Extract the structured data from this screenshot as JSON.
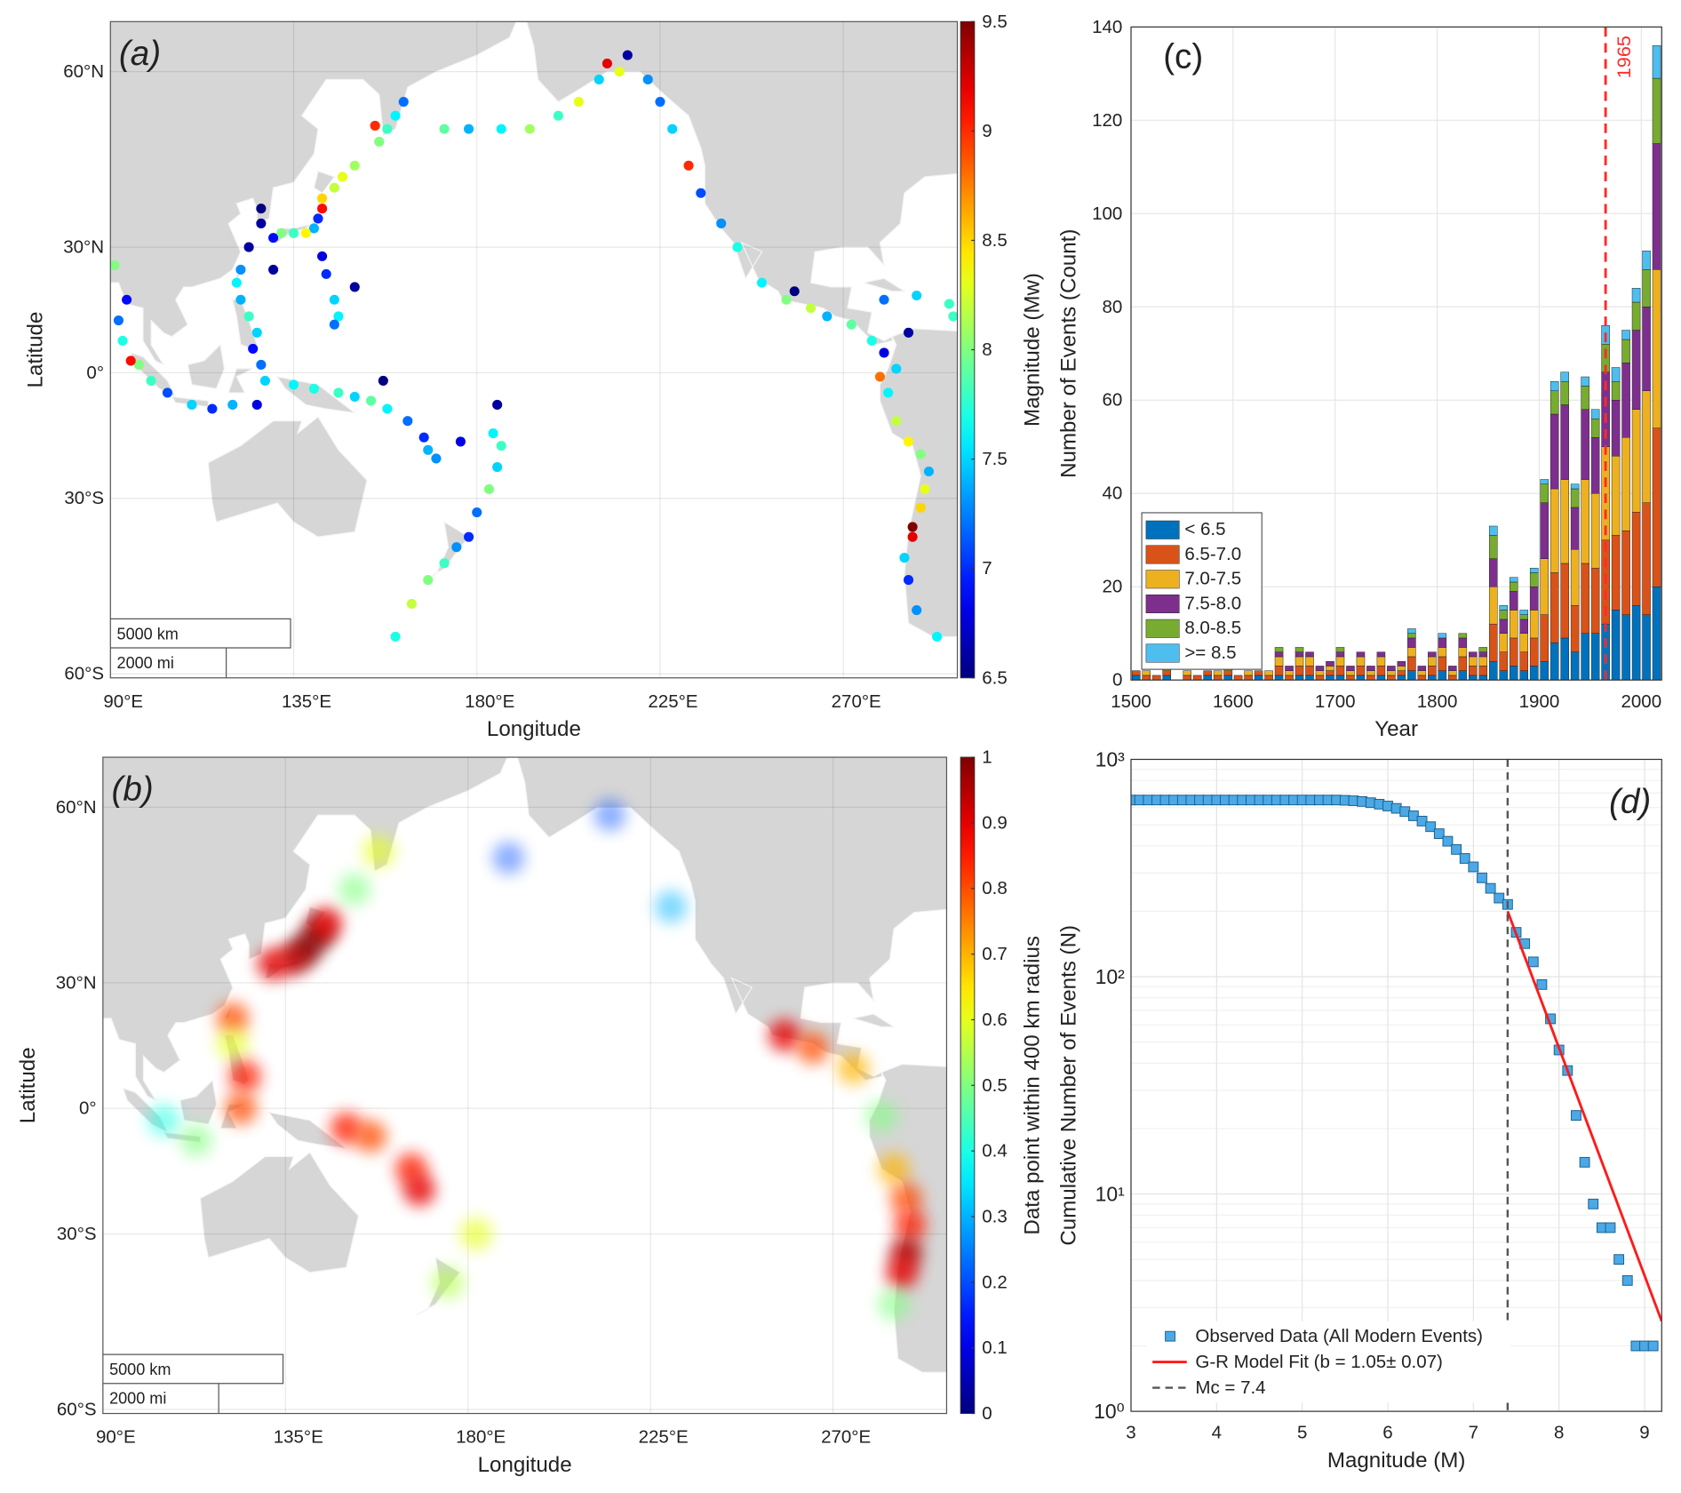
{
  "chart_data": [
    {
      "type": "mapscatter",
      "panel_label": "(a)",
      "x_label": "Longitude",
      "y_label": "Latitude",
      "xlim": [
        90,
        298
      ],
      "ylim": [
        -60.5,
        65.7
      ],
      "xticks": [
        {
          "value": 90,
          "label": "90°E"
        },
        {
          "value": 135,
          "label": "135°E"
        },
        {
          "value": 180,
          "label": "180°E"
        },
        {
          "value": 225,
          "label": "225°E"
        },
        {
          "value": 270,
          "label": "270°E"
        }
      ],
      "yticks": [
        {
          "value": -60,
          "label": "60°S"
        },
        {
          "value": -30,
          "label": "30°S"
        },
        {
          "value": 0,
          "label": "0°"
        },
        {
          "value": 30,
          "label": "30°N"
        },
        {
          "value": 60,
          "label": "60°N"
        }
      ],
      "scale_bars": [
        "5000 km",
        "2000 mi"
      ],
      "colormap": "jet",
      "clim": [
        6.5,
        9.5
      ],
      "colorbar_label": "Magnitude (Mw)",
      "cticks": [
        6.5,
        7,
        7.5,
        8,
        8.5,
        9,
        9.5
      ],
      "grid": true,
      "x": [
        158,
        160,
        162,
        156,
        155,
        150,
        147,
        145,
        142,
        142,
        141,
        140,
        138,
        135,
        132,
        130,
        127,
        124,
        122,
        121,
        122,
        124,
        126,
        125,
        127,
        128,
        126,
        120,
        115,
        110,
        104,
        100,
        97,
        95,
        93,
        92,
        94,
        91,
        142,
        143,
        145,
        146,
        145,
        135,
        140,
        146,
        150,
        154,
        158,
        163,
        167,
        168,
        170,
        176,
        184,
        186,
        185,
        183,
        180,
        178,
        175,
        172,
        168,
        164,
        160,
        172,
        178,
        186,
        193,
        200,
        205,
        210,
        212,
        215,
        222,
        225,
        228,
        232,
        235,
        240,
        244,
        250,
        256,
        262,
        266,
        272,
        277,
        280,
        283,
        279,
        281,
        283,
        286,
        289,
        291,
        290,
        289,
        287,
        287,
        285,
        286,
        288,
        293,
        280,
        288,
        296,
        297,
        127,
        130,
        150,
        157,
        185,
        217,
        258,
        286
      ],
      "y": [
        52,
        54,
        56,
        50,
        52.5,
        46,
        44,
        42,
        40,
        38,
        36,
        34,
        33,
        33,
        33,
        32,
        35,
        30,
        25,
        22,
        18,
        14,
        10,
        6,
        2,
        -2,
        -8,
        -8,
        -9,
        -8,
        -5,
        -2,
        2,
        3,
        8,
        13,
        18,
        26,
        28,
        24,
        18,
        14,
        12,
        -3,
        -4,
        -5,
        -6,
        -7,
        -9,
        -12,
        -16,
        -19,
        -21,
        -17,
        -15,
        -18,
        -23,
        -28,
        -33,
        -38,
        -40,
        -43,
        -46,
        -50,
        -55,
        52,
        52,
        52,
        52,
        54,
        56,
        59,
        61,
        60,
        59,
        56,
        52,
        46,
        41,
        35,
        30,
        22,
        18,
        16,
        14,
        12,
        8,
        5,
        1,
        -1,
        -5,
        -12,
        -17,
        -20,
        -24,
        -28,
        -32,
        -36,
        -38,
        -42,
        -46,
        -51,
        -55,
        18,
        19,
        17,
        14,
        38,
        25,
        21,
        -2,
        -8,
        62,
        20,
        10
      ],
      "values": [
        7.8,
        7.6,
        7.2,
        8.0,
        9.0,
        8.1,
        8.3,
        8.2,
        8.5,
        9.1,
        7.0,
        7.4,
        8.4,
        7.8,
        8.0,
        6.9,
        6.6,
        6.6,
        7.3,
        7.6,
        7.4,
        7.8,
        7.5,
        6.9,
        7.2,
        7.5,
        6.8,
        7.4,
        7.0,
        7.5,
        7.1,
        7.8,
        8.0,
        9.1,
        7.7,
        7.2,
        6.9,
        8.0,
        6.8,
        7.0,
        7.5,
        7.6,
        7.2,
        7.6,
        7.7,
        7.8,
        7.5,
        7.9,
        7.6,
        7.2,
        7.0,
        7.4,
        7.3,
        6.8,
        7.6,
        7.8,
        7.5,
        8.0,
        7.2,
        7.0,
        7.3,
        7.8,
        8.0,
        8.2,
        7.7,
        7.9,
        7.4,
        7.6,
        8.1,
        7.8,
        8.3,
        7.5,
        9.2,
        8.3,
        7.3,
        7.2,
        7.5,
        9.0,
        7.1,
        7.3,
        7.7,
        7.6,
        8.0,
        8.2,
        7.4,
        7.9,
        7.7,
        6.8,
        7.5,
        8.8,
        7.6,
        8.2,
        8.4,
        8.0,
        7.4,
        8.3,
        8.5,
        9.5,
        9.2,
        7.5,
        7.0,
        7.3,
        7.6,
        7.2,
        7.5,
        7.8,
        7.8,
        6.5,
        6.6,
        6.6,
        6.5,
        6.6,
        6.6,
        6.5,
        6.6
      ]
    },
    {
      "type": "mapdensity",
      "panel_label": "(b)",
      "x_label": "Longitude",
      "y_label": "Latitude",
      "xlim": [
        90,
        298
      ],
      "ylim": [
        -60.5,
        65.7
      ],
      "xticks": [
        {
          "value": 90,
          "label": "90°E"
        },
        {
          "value": 135,
          "label": "135°E"
        },
        {
          "value": 180,
          "label": "180°E"
        },
        {
          "value": 225,
          "label": "225°E"
        },
        {
          "value": 270,
          "label": "270°E"
        }
      ],
      "yticks": [
        {
          "value": -60,
          "label": "60°S"
        },
        {
          "value": -30,
          "label": "30°S"
        },
        {
          "value": 0,
          "label": "0°"
        },
        {
          "value": 30,
          "label": "30°N"
        },
        {
          "value": 60,
          "label": "60°N"
        }
      ],
      "scale_bars": [
        "5000 km",
        "2000 mi"
      ],
      "colormap": "jet",
      "clim": [
        0,
        1
      ],
      "colorbar_label": "Data point within 400 km radius",
      "cticks": [
        0,
        0.1,
        0.2,
        0.3,
        0.4,
        0.5,
        0.6,
        0.7,
        0.8,
        0.9,
        1
      ],
      "grid": true,
      "x": [
        140,
        143,
        145,
        137,
        132,
        152,
        158,
        122,
        122,
        125,
        124,
        105,
        113,
        150,
        156,
        166,
        168,
        182,
        175,
        190,
        215,
        230,
        258,
        265,
        275,
        282,
        285,
        288,
        289,
        288,
        287,
        285
      ],
      "y": [
        37,
        40,
        42,
        35,
        34,
        48,
        54,
        22,
        16,
        8,
        0,
        -3,
        -8,
        -5,
        -7,
        -15,
        -20,
        -30,
        -40,
        53,
        59,
        45,
        18,
        15,
        10,
        -2,
        -15,
        -22,
        -28,
        -34,
        -38,
        -44
      ],
      "values": [
        1,
        1,
        0.9,
        0.95,
        0.9,
        0.5,
        0.6,
        0.8,
        0.6,
        0.85,
        0.8,
        0.4,
        0.5,
        0.85,
        0.8,
        0.85,
        0.9,
        0.6,
        0.55,
        0.2,
        0.2,
        0.3,
        0.9,
        0.8,
        0.7,
        0.5,
        0.7,
        0.8,
        0.85,
        0.95,
        0.9,
        0.5
      ]
    },
    {
      "type": "histogram",
      "panel_label": "(c)",
      "x_label": "Year",
      "y_label": "Number of Events (Count)",
      "xlim": [
        1500,
        2020
      ],
      "xticks": [
        1500,
        1600,
        1700,
        1800,
        1900,
        2000
      ],
      "ylim": [
        0,
        140
      ],
      "yticks": [
        0,
        20,
        40,
        60,
        80,
        100,
        120,
        140
      ],
      "grid": true,
      "legend": "lower left",
      "vline": {
        "x": 1965,
        "color": "#ff2a2a"
      },
      "bins": [
        1500,
        1510,
        1520,
        1530,
        1540,
        1550,
        1560,
        1570,
        1580,
        1590,
        1600,
        1610,
        1620,
        1630,
        1640,
        1650,
        1660,
        1670,
        1680,
        1690,
        1700,
        1710,
        1720,
        1730,
        1740,
        1750,
        1760,
        1770,
        1780,
        1790,
        1800,
        1810,
        1820,
        1830,
        1840,
        1850,
        1860,
        1870,
        1880,
        1890,
        1900,
        1910,
        1920,
        1930,
        1940,
        1950,
        1960,
        1970,
        1980,
        1990,
        2000,
        2010,
        2020
      ],
      "series": [
        {
          "name": "< 6.5",
          "color": "#0072bd",
          "values": [
            1,
            0,
            0,
            1,
            0,
            0,
            0,
            1,
            0,
            1,
            0,
            0,
            1,
            0,
            1,
            0,
            1,
            1,
            0,
            1,
            1,
            0,
            1,
            0,
            1,
            0,
            1,
            2,
            0,
            1,
            2,
            0,
            2,
            1,
            1,
            4,
            2,
            3,
            2,
            3,
            4,
            8,
            9,
            6,
            10,
            10,
            12,
            15,
            14,
            16,
            14,
            20
          ]
        },
        {
          "name": "6.5-7.0",
          "color": "#d95319",
          "values": [
            1,
            1,
            1,
            1,
            0,
            1,
            1,
            1,
            1,
            1,
            1,
            1,
            1,
            1,
            2,
            1,
            2,
            2,
            1,
            1,
            2,
            1,
            2,
            1,
            2,
            1,
            1,
            3,
            1,
            2,
            3,
            1,
            3,
            2,
            2,
            8,
            4,
            6,
            4,
            6,
            10,
            15,
            16,
            10,
            15,
            14,
            18,
            16,
            18,
            20,
            24,
            34
          ]
        },
        {
          "name": "7.0-7.5",
          "color": "#edb120",
          "values": [
            0,
            1,
            0,
            1,
            0,
            1,
            0,
            0,
            1,
            1,
            0,
            1,
            0,
            1,
            2,
            1,
            2,
            2,
            1,
            1,
            2,
            1,
            2,
            1,
            2,
            1,
            1,
            2,
            1,
            2,
            2,
            1,
            2,
            2,
            2,
            8,
            4,
            6,
            4,
            6,
            12,
            18,
            18,
            12,
            18,
            16,
            20,
            17,
            20,
            22,
            24,
            34
          ]
        },
        {
          "name": "7.5-8.0",
          "color": "#7e2f8e",
          "values": [
            0,
            0,
            0,
            0,
            0,
            0,
            0,
            0,
            0,
            0,
            0,
            0,
            0,
            0,
            1,
            1,
            1,
            1,
            1,
            1,
            1,
            1,
            1,
            1,
            1,
            1,
            1,
            2,
            1,
            1,
            2,
            1,
            2,
            1,
            1,
            6,
            3,
            4,
            3,
            5,
            12,
            16,
            16,
            9,
            15,
            12,
            16,
            12,
            16,
            17,
            18,
            27
          ]
        },
        {
          "name": "8.0-8.5",
          "color": "#77ac30",
          "values": [
            0,
            0,
            0,
            0,
            0,
            0,
            0,
            0,
            0,
            0,
            0,
            0,
            0,
            0,
            1,
            0,
            1,
            0,
            0,
            0,
            1,
            0,
            0,
            0,
            0,
            0,
            0,
            1,
            0,
            0,
            0,
            0,
            1,
            0,
            1,
            5,
            2,
            2,
            1,
            3,
            4,
            5,
            5,
            4,
            5,
            4,
            6,
            4,
            5,
            6,
            8,
            14
          ]
        },
        {
          "name": ">= 8.5",
          "color": "#4dbeee",
          "values": [
            0,
            0,
            0,
            0,
            0,
            0,
            0,
            0,
            0,
            0,
            0,
            0,
            0,
            0,
            0,
            0,
            0,
            0,
            0,
            0,
            0,
            0,
            0,
            0,
            0,
            0,
            0,
            1,
            0,
            0,
            1,
            0,
            0,
            0,
            0,
            2,
            1,
            1,
            1,
            1,
            1,
            2,
            2,
            1,
            2,
            2,
            4,
            3,
            2,
            3,
            4,
            7
          ]
        }
      ]
    },
    {
      "type": "scatter",
      "panel_label": "(d)",
      "x_label": "Magnitude (M)",
      "y_label": "Cumulative Number of Events (N)",
      "xlim": [
        3,
        9.2
      ],
      "xticks": [
        3,
        4,
        5,
        6,
        7,
        8,
        9
      ],
      "ylim": [
        1,
        1000
      ],
      "log_y": true,
      "yticks": [
        {
          "value": 1,
          "label": "10⁰"
        },
        {
          "value": 10,
          "label": "10¹"
        },
        {
          "value": 100,
          "label": "10²"
        },
        {
          "value": 1000,
          "label": "10³"
        }
      ],
      "grid": true,
      "legend": "lower left",
      "series": [
        {
          "name": "Observed Data (All Modern Events)",
          "color": "#4aa9e6",
          "marker": "square",
          "x": [
            3,
            3.1,
            3.2,
            3.3,
            3.4,
            3.5,
            3.6,
            3.7,
            3.8,
            3.9,
            4,
            4.1,
            4.2,
            4.3,
            4.4,
            4.5,
            4.6,
            4.7,
            4.8,
            4.9,
            5,
            5.1,
            5.2,
            5.3,
            5.4,
            5.5,
            5.6,
            5.7,
            5.8,
            5.9,
            6,
            6.1,
            6.2,
            6.3,
            6.4,
            6.5,
            6.6,
            6.7,
            6.8,
            6.9,
            7,
            7.1,
            7.2,
            7.3,
            7.4,
            7.5,
            7.6,
            7.7,
            7.8,
            7.9,
            8,
            8.1,
            8.2,
            8.3,
            8.4,
            8.5,
            8.6,
            8.7,
            8.8,
            8.9,
            9,
            9.1
          ],
          "values": [
            650,
            650,
            650,
            650,
            650,
            650,
            650,
            650,
            650,
            650,
            650,
            650,
            650,
            650,
            650,
            650,
            650,
            650,
            650,
            650,
            650,
            650,
            650,
            650,
            650,
            648,
            645,
            640,
            632,
            622,
            610,
            595,
            575,
            550,
            520,
            490,
            455,
            420,
            385,
            350,
            320,
            285,
            255,
            230,
            215,
            160,
            142,
            117,
            92,
            64,
            46,
            37,
            23,
            14,
            9,
            7,
            7,
            5,
            4,
            2,
            2,
            2
          ]
        },
        {
          "name": "G-R Model Fit (b = 1.05± 0.07)",
          "color": "#ff1a1a",
          "line": "solid",
          "x": [
            7.4,
            9.2
          ],
          "values": [
            200,
            2.6
          ]
        },
        {
          "name": "Mc = 7.4",
          "color": "#555555",
          "line": "dashed",
          "vline": 7.4
        }
      ]
    }
  ]
}
